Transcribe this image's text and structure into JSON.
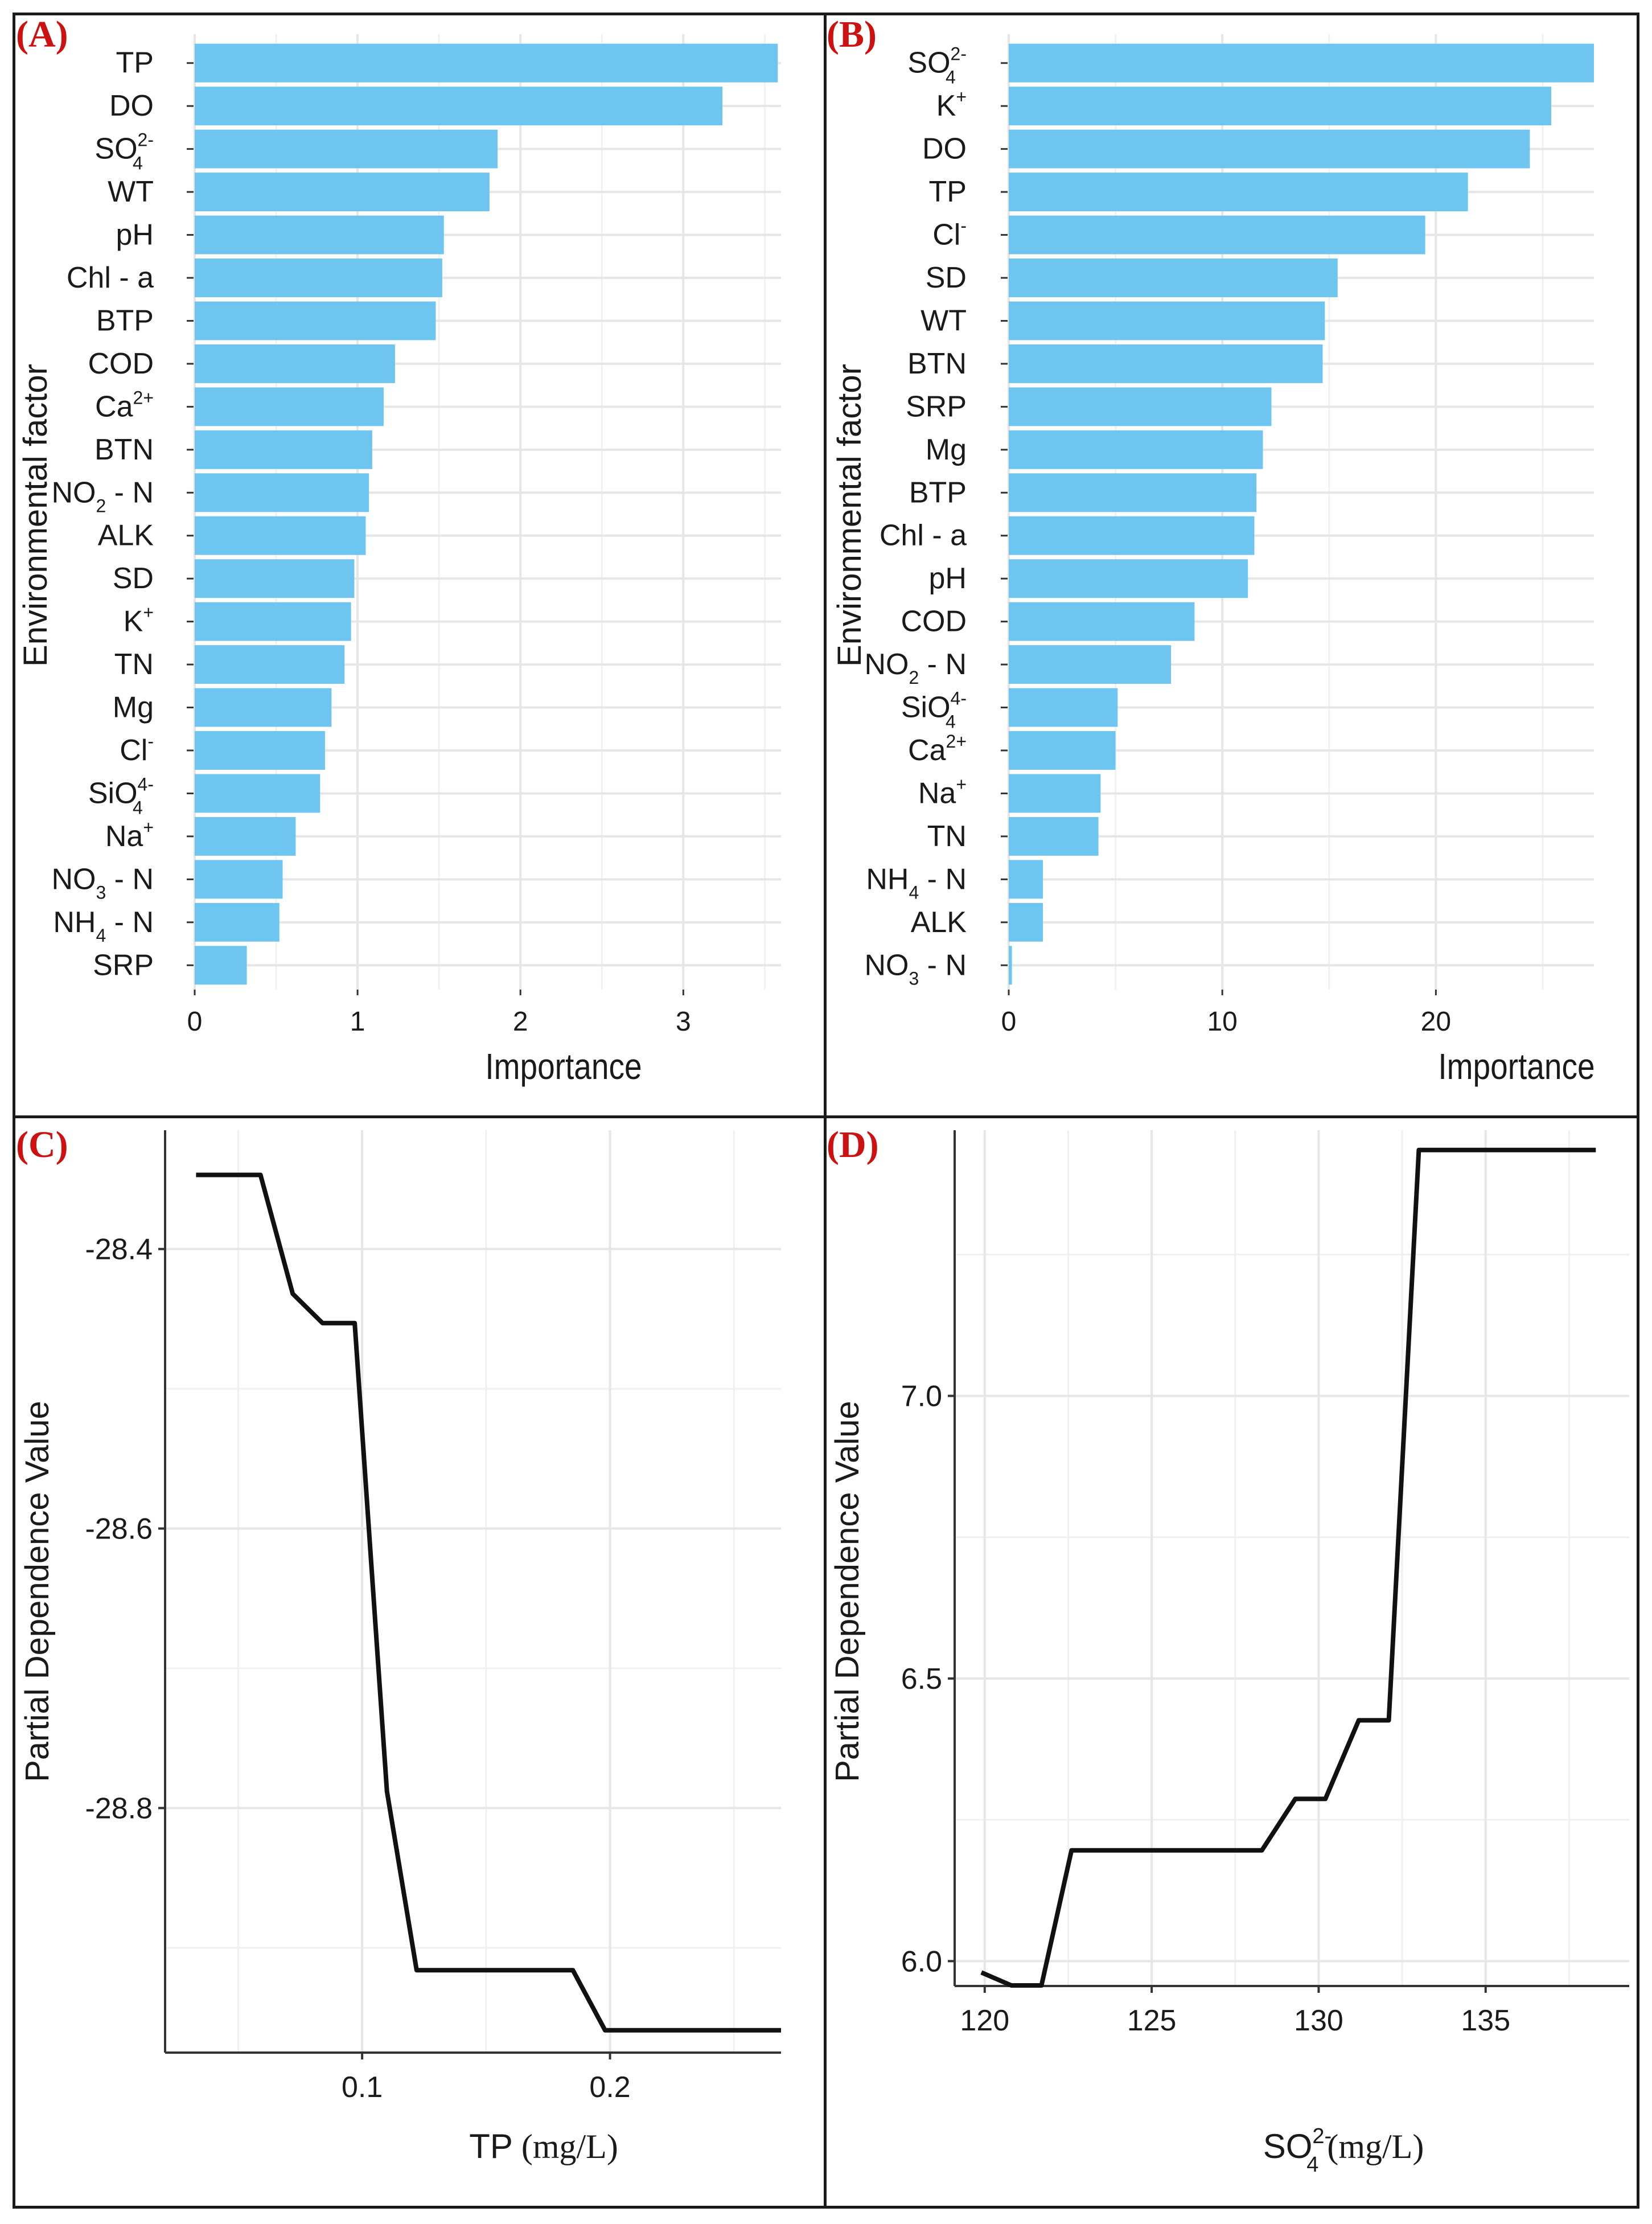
{
  "colors": {
    "bar": "#6EC6F0",
    "grid": "#e6e6e6",
    "line": "#111111",
    "panel_label": "#cc1111",
    "text": "#1a1a1a",
    "axis": "#333333"
  },
  "chart_data": [
    {
      "panel": "A",
      "panel_label": "(A)",
      "type": "bar",
      "orientation": "horizontal",
      "xlabel": "Importance",
      "ylabel": "Environmental factor",
      "xlim": [
        0,
        3.6
      ],
      "xticks": [
        0,
        1,
        2,
        3
      ],
      "categories": [
        {
          "base": "TP",
          "sub": "",
          "sup": ""
        },
        {
          "base": "DO",
          "sub": "",
          "sup": ""
        },
        {
          "base": "SO",
          "sub": "4",
          "sup": "2-"
        },
        {
          "base": "WT",
          "sub": "",
          "sup": ""
        },
        {
          "base": "pH",
          "sub": "",
          "sup": ""
        },
        {
          "base": "Chl - a",
          "sub": "",
          "sup": ""
        },
        {
          "base": "BTP",
          "sub": "",
          "sup": ""
        },
        {
          "base": "COD",
          "sub": "",
          "sup": ""
        },
        {
          "base": "Ca",
          "sub": "",
          "sup": "2+"
        },
        {
          "base": "BTN",
          "sub": "",
          "sup": ""
        },
        {
          "base": "NO",
          "sub": "2",
          "sup": "",
          "suffix": " - N"
        },
        {
          "base": "ALK",
          "sub": "",
          "sup": ""
        },
        {
          "base": "SD",
          "sub": "",
          "sup": ""
        },
        {
          "base": "K",
          "sub": "",
          "sup": "+"
        },
        {
          "base": "TN",
          "sub": "",
          "sup": ""
        },
        {
          "base": "Mg",
          "sub": "",
          "sup": ""
        },
        {
          "base": "Cl",
          "sub": "",
          "sup": "-"
        },
        {
          "base": "SiO",
          "sub": "4",
          "sup": "4-"
        },
        {
          "base": "Na",
          "sub": "",
          "sup": "+"
        },
        {
          "base": "NO",
          "sub": "3",
          "sup": "",
          "suffix": " - N"
        },
        {
          "base": "NH",
          "sub": "4",
          "sup": "",
          "suffix": " - N"
        },
        {
          "base": "SRP",
          "sub": "",
          "sup": ""
        }
      ],
      "values": [
        3.58,
        3.24,
        1.86,
        1.81,
        1.53,
        1.52,
        1.48,
        1.23,
        1.16,
        1.09,
        1.07,
        1.05,
        0.98,
        0.96,
        0.92,
        0.84,
        0.8,
        0.77,
        0.62,
        0.54,
        0.52,
        0.32
      ]
    },
    {
      "panel": "B",
      "panel_label": "(B)",
      "type": "bar",
      "orientation": "horizontal",
      "xlabel": "Importance",
      "ylabel": "Environmental factor",
      "xlim": [
        0,
        27.4
      ],
      "xticks": [
        0,
        10,
        20
      ],
      "categories": [
        {
          "base": "SO",
          "sub": "4",
          "sup": "2-"
        },
        {
          "base": "K",
          "sub": "",
          "sup": "+"
        },
        {
          "base": "DO",
          "sub": "",
          "sup": ""
        },
        {
          "base": "TP",
          "sub": "",
          "sup": ""
        },
        {
          "base": "Cl",
          "sub": "",
          "sup": "-"
        },
        {
          "base": "SD",
          "sub": "",
          "sup": ""
        },
        {
          "base": "WT",
          "sub": "",
          "sup": ""
        },
        {
          "base": "BTN",
          "sub": "",
          "sup": ""
        },
        {
          "base": "SRP",
          "sub": "",
          "sup": ""
        },
        {
          "base": "Mg",
          "sub": "",
          "sup": ""
        },
        {
          "base": "BTP",
          "sub": "",
          "sup": ""
        },
        {
          "base": "Chl - a",
          "sub": "",
          "sup": ""
        },
        {
          "base": "pH",
          "sub": "",
          "sup": ""
        },
        {
          "base": "COD",
          "sub": "",
          "sup": ""
        },
        {
          "base": "NO",
          "sub": "2",
          "sup": "",
          "suffix": " - N"
        },
        {
          "base": "SiO",
          "sub": "4",
          "sup": "4-"
        },
        {
          "base": "Ca",
          "sub": "",
          "sup": "2+"
        },
        {
          "base": "Na",
          "sub": "",
          "sup": "+"
        },
        {
          "base": "TN",
          "sub": "",
          "sup": ""
        },
        {
          "base": "NH",
          "sub": "4",
          "sup": "",
          "suffix": " - N"
        },
        {
          "base": "ALK",
          "sub": "",
          "sup": ""
        },
        {
          "base": "NO",
          "sub": "3",
          "sup": "",
          "suffix": " - N"
        }
      ],
      "values": [
        27.4,
        25.4,
        24.4,
        21.5,
        19.5,
        15.4,
        14.8,
        14.7,
        12.3,
        11.9,
        11.6,
        11.5,
        11.2,
        8.7,
        7.6,
        5.1,
        5.0,
        4.3,
        4.2,
        1.6,
        1.6,
        0.15
      ]
    },
    {
      "panel": "C",
      "panel_label": "(C)",
      "type": "line",
      "xlabel_main": "TP",
      "xlabel_unit": " (mg/L)",
      "ylabel": "Partial Dependence Value",
      "xlim": [
        0.0205,
        0.269
      ],
      "ylim": [
        -28.975,
        -28.315
      ],
      "xticks": [
        0.1,
        0.2
      ],
      "xtick_labels": [
        "0.1",
        "0.2"
      ],
      "yticks": [
        -28.4,
        -28.6,
        -28.8
      ],
      "ytick_labels": [
        "-28.4",
        "-28.6",
        "-28.8"
      ],
      "x_minor_grid": [
        0.05,
        0.15,
        0.25
      ],
      "y_minor_grid": [
        -28.3,
        -28.5,
        -28.7,
        -28.9
      ],
      "x": [
        0.033,
        0.059,
        0.072,
        0.084,
        0.097,
        0.11,
        0.122,
        0.185,
        0.198,
        0.269
      ],
      "y": [
        -28.347,
        -28.347,
        -28.432,
        -28.453,
        -28.453,
        -28.788,
        -28.916,
        -28.916,
        -28.959,
        -28.959
      ]
    },
    {
      "panel": "D",
      "panel_label": "(D)",
      "type": "line",
      "xlabel_main": "SO",
      "xlabel_sub": "4",
      "xlabel_sup": "2-",
      "xlabel_unit": "  (mg/L)",
      "ylabel": "Partial Dependence Value",
      "xlim": [
        119.1,
        139.3
      ],
      "ylim": [
        5.956,
        7.47
      ],
      "xticks": [
        120,
        125,
        130,
        135
      ],
      "xtick_labels": [
        "120",
        "125",
        "130",
        "135"
      ],
      "yticks": [
        6.0,
        6.5,
        7.0
      ],
      "ytick_labels": [
        "6.0",
        "6.5",
        "7.0"
      ],
      "x_minor_grid": [
        122.5,
        127.5,
        132.5,
        137.5
      ],
      "y_minor_grid": [
        6.25,
        6.75,
        7.25
      ],
      "x": [
        119.9,
        120.8,
        121.7,
        122.6,
        128.3,
        129.3,
        130.2,
        131.2,
        132.1,
        133.0,
        138.3
      ],
      "y": [
        5.98,
        5.957,
        5.957,
        6.196,
        6.196,
        6.287,
        6.287,
        6.426,
        6.426,
        7.435,
        7.435
      ]
    }
  ]
}
